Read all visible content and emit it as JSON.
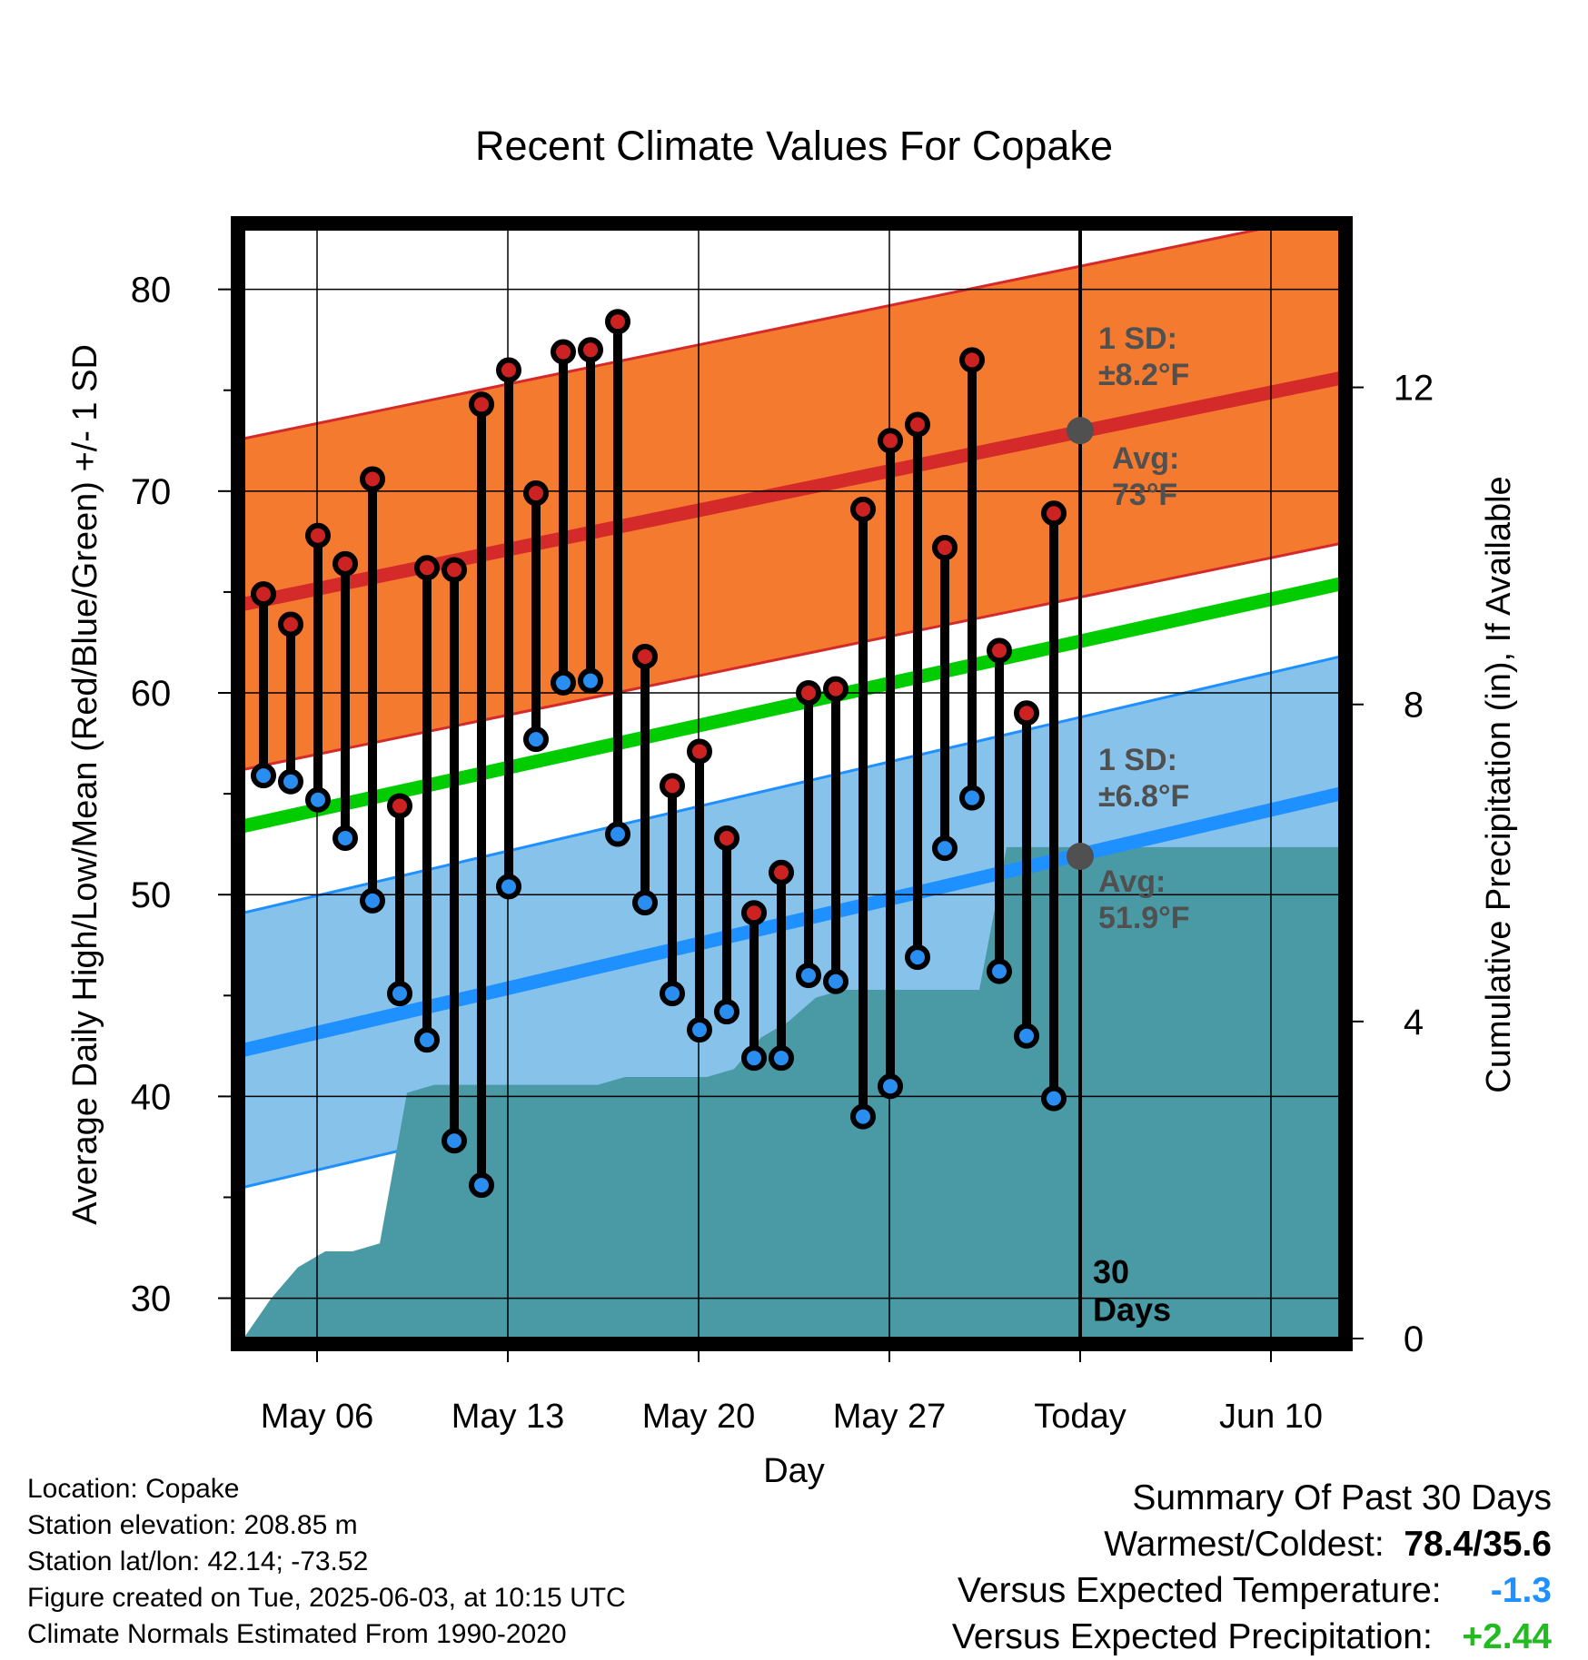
{
  "chart_data": {
    "type": "line",
    "title": "Recent Climate Values For Copake",
    "xlabel": "Day",
    "ylabel": "Average Daily High/Low/Mean (Red/Blue/Green) +/- 1 SD",
    "y2label": "Cumulative Precipitation (in), If Available",
    "ylim": [
      28,
      83
    ],
    "y2lim": [
      0,
      14
    ],
    "yticks": [
      30,
      40,
      50,
      60,
      70,
      80
    ],
    "y2ticks": [
      0,
      4,
      8,
      12
    ],
    "x_tick_labels": [
      "May 06",
      "May 13",
      "May 20",
      "May 27",
      "Today",
      "Jun 10"
    ],
    "grid": true,
    "days": [
      "May 04",
      "May 05",
      "May 06",
      "May 07",
      "May 08",
      "May 09",
      "May 10",
      "May 11",
      "May 12",
      "May 13",
      "May 14",
      "May 15",
      "May 16",
      "May 17",
      "May 18",
      "May 19",
      "May 20",
      "May 21",
      "May 22",
      "May 23",
      "May 24",
      "May 25",
      "May 26",
      "May 27",
      "May 28",
      "May 29",
      "May 30",
      "May 31",
      "Jun 01",
      "Jun 02"
    ],
    "highs": [
      64.9,
      63.4,
      67.8,
      66.4,
      70.6,
      54.4,
      66.2,
      66.1,
      74.3,
      76.0,
      69.9,
      76.9,
      77.0,
      78.4,
      61.8,
      55.4,
      57.1,
      52.8,
      49.1,
      51.1,
      60.0,
      60.2,
      69.1,
      72.5,
      73.3,
      67.2,
      76.5,
      62.1,
      59.0,
      68.9
    ],
    "lows": [
      55.9,
      55.6,
      54.7,
      52.8,
      49.7,
      45.1,
      42.8,
      37.8,
      35.6,
      50.4,
      57.7,
      60.5,
      60.6,
      53.0,
      49.6,
      45.1,
      43.3,
      44.2,
      41.9,
      41.9,
      46.0,
      45.7,
      39.0,
      40.5,
      46.9,
      52.3,
      54.8,
      46.2,
      43.0,
      39.9
    ],
    "precip_series": {
      "days": [
        "May 03",
        "May 04",
        "May 05",
        "May 06",
        "May 07",
        "May 08",
        "May 09",
        "May 10",
        "May 11",
        "May 12",
        "May 13",
        "May 14",
        "May 15",
        "May 16",
        "May 17",
        "May 18",
        "May 19",
        "May 20",
        "May 21",
        "May 22",
        "May 23",
        "May 24",
        "May 25",
        "May 26",
        "May 27",
        "May 28",
        "May 29",
        "May 30",
        "May 31",
        "Jun 01",
        "Jun 02",
        "Jun 03",
        "Jun 04",
        "Jun 05",
        "Jun 06",
        "Jun 07",
        "Jun 08",
        "Jun 09",
        "Jun 10",
        "Jun 11"
      ],
      "values": [
        0,
        0.5,
        0.9,
        1.1,
        1.1,
        1.2,
        3.1,
        3.2,
        3.2,
        3.2,
        3.2,
        3.2,
        3.2,
        3.2,
        3.3,
        3.3,
        3.3,
        3.3,
        3.4,
        3.8,
        4.0,
        4.3,
        4.4,
        4.4,
        4.4,
        4.4,
        4.4,
        4.4,
        6.2,
        6.2,
        6.2,
        6.2,
        6.2,
        6.2,
        6.2,
        6.2,
        6.2,
        6.2,
        6.2,
        6.2
      ]
    },
    "normal_high": {
      "start": 64.4,
      "end": 75.6,
      "sd": 8.2
    },
    "normal_low": {
      "start": 42.3,
      "end": 55.0,
      "sd": 6.8
    },
    "normal_mean": {
      "start": 53.4,
      "end": 65.4
    },
    "today_marker_label": "30\nDays",
    "annotations": {
      "high_sd": "1 SD:\n±8.2°F",
      "high_avg": "Avg:\n73°F",
      "low_sd": "1 SD:\n±6.8°F",
      "low_avg": "Avg:\n51.9°F"
    },
    "today_high_avg": 73,
    "today_low_avg": 51.9,
    "colors": {
      "high_band": "#f47a2f",
      "high_line": "#d42a2a",
      "low_band": "#86c2ea",
      "low_line": "#1e90ff",
      "mean_line": "#00cc00",
      "precip": "#4a9aa6",
      "high_dot": "#cc2222",
      "low_dot": "#2a8ef0",
      "annotation": "#505050"
    }
  },
  "info": {
    "location": "Location: Copake",
    "elevation": "Station elevation: 208.85 m",
    "latlon": "Station lat/lon: 42.14; -73.52",
    "created": "Figure created on Tue, 2025-06-03, at 10:15 UTC",
    "normals": "Climate Normals Estimated From 1990-2020"
  },
  "summary": {
    "title": "Summary Of Past 30 Days",
    "warmest_label": "Warmest/Coldest:",
    "warmest_value": "78.4/35.6",
    "temp_label": "Versus Expected Temperature:",
    "temp_value": "-1.3",
    "temp_color": "#1e90ff",
    "precip_label": "Versus Expected Precipitation:",
    "precip_value": "+2.44",
    "precip_color": "#22bb22"
  }
}
